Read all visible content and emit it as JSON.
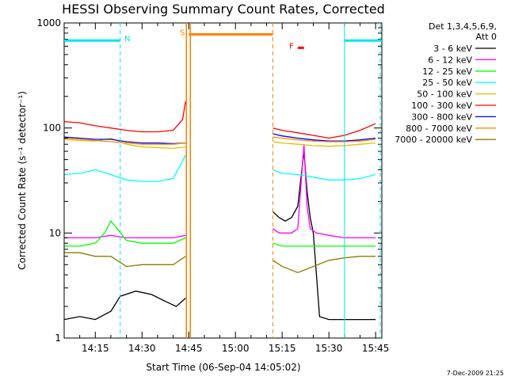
{
  "chart_data": {
    "type": "line",
    "title": "HESSI Observing Summary Count Rates, Corrected",
    "xlabel": "Start Time (06-Sep-04 14:05:02)",
    "ylabel": "Corrected Count Rate (s⁻¹ detector⁻¹)",
    "y_scale": "log",
    "ylim": [
      1,
      1000
    ],
    "xlim": [
      "14:05",
      "15:47"
    ],
    "x_ticks": [
      "14:15",
      "14:30",
      "14:45",
      "15:00",
      "15:15",
      "15:30",
      "15:45"
    ],
    "y_ticks": [
      "1",
      "10",
      "100",
      "1000"
    ],
    "legend_header": [
      "Det 1,3,4,5,6,9,",
      "Att 0"
    ],
    "legend_position": "right",
    "grid": false,
    "footer": "7-Dec-2009 21:25",
    "markers": [
      {
        "label": "N",
        "color": "#00e5ee",
        "x_start": "14:05",
        "x_end": "14:23",
        "y": 680
      },
      {
        "label": "S",
        "color": "#ff7f00",
        "x_start": "14:45",
        "x_end": "15:12",
        "y": 780
      },
      {
        "label": "F",
        "color": "#ff0000",
        "x_start": "15:20",
        "x_end": "15:22",
        "y": 580
      },
      {
        "label": "",
        "color": "#00e5ee",
        "x_start": "15:35",
        "x_end": "15:47",
        "y": 680
      }
    ],
    "series": [
      {
        "name": "3 - 6 keV",
        "color": "#000000",
        "segments": [
          {
            "x": [
              "14:05",
              "14:10",
              "14:15",
              "14:20",
              "14:23",
              "14:28",
              "14:33",
              "14:38",
              "14:41",
              "14:44"
            ],
            "values": [
              1.5,
              1.6,
              1.5,
              1.8,
              2.5,
              2.8,
              2.6,
              2.2,
              2.0,
              2.4
            ]
          },
          {
            "x": [
              "15:12",
              "15:14",
              "15:16",
              "15:18",
              "15:20",
              "15:22",
              "15:23",
              "15:24",
              "15:25",
              "15:27",
              "15:30",
              "15:35",
              "15:40",
              "15:45"
            ],
            "values": [
              16,
              14,
              13,
              14,
              18,
              60,
              25,
              14,
              10,
              1.6,
              1.5,
              1.5,
              1.5,
              1.5
            ]
          }
        ]
      },
      {
        "name": "6 - 12 keV",
        "color": "#ff00ff",
        "segments": [
          {
            "x": [
              "14:05",
              "14:10",
              "14:15",
              "14:20",
              "14:25",
              "14:30",
              "14:35",
              "14:40",
              "14:44"
            ],
            "values": [
              9,
              9,
              9,
              9.5,
              9,
              9,
              9,
              9,
              9.5
            ]
          },
          {
            "x": [
              "15:12",
              "15:14",
              "15:16",
              "15:18",
              "15:20",
              "15:22",
              "15:23",
              "15:24",
              "15:26",
              "15:30",
              "15:35",
              "15:40",
              "15:45"
            ],
            "values": [
              11,
              10,
              10,
              10,
              11,
              70,
              18,
              11,
              10,
              9.5,
              9,
              9,
              9
            ]
          }
        ]
      },
      {
        "name": "12 - 25 keV",
        "color": "#00ff00",
        "segments": [
          {
            "x": [
              "14:05",
              "14:10",
              "14:15",
              "14:18",
              "14:20",
              "14:25",
              "14:30",
              "14:35",
              "14:40",
              "14:44"
            ],
            "values": [
              7.5,
              7.5,
              8,
              10,
              13,
              8.5,
              8,
              8,
              8,
              9
            ]
          },
          {
            "x": [
              "15:12",
              "15:15",
              "15:20",
              "15:25",
              "15:30",
              "15:35",
              "15:40",
              "15:45"
            ],
            "values": [
              8,
              7.5,
              7.5,
              7.5,
              7.5,
              7.5,
              7.5,
              7.5
            ]
          }
        ]
      },
      {
        "name": "25 - 50 keV",
        "color": "#00ffff",
        "segments": [
          {
            "x": [
              "14:05",
              "14:10",
              "14:15",
              "14:20",
              "14:25",
              "14:30",
              "14:35",
              "14:40",
              "14:44"
            ],
            "values": [
              36,
              37,
              40,
              36,
              32,
              31,
              31,
              33,
              55
            ]
          },
          {
            "x": [
              "15:12",
              "15:15",
              "15:20",
              "15:25",
              "15:30",
              "15:35",
              "15:40",
              "15:45"
            ],
            "values": [
              40,
              37,
              36,
              34,
              32,
              32,
              33,
              36
            ]
          }
        ]
      },
      {
        "name": "50 - 100 keV",
        "color": "#e0c000",
        "segments": [
          {
            "x": [
              "14:05",
              "14:10",
              "14:15",
              "14:20",
              "14:25",
              "14:30",
              "14:35",
              "14:40",
              "14:44"
            ],
            "values": [
              78,
              76,
              75,
              80,
              70,
              66,
              65,
              64,
              66
            ]
          },
          {
            "x": [
              "15:12",
              "15:15",
              "15:20",
              "15:25",
              "15:30",
              "15:35",
              "15:40",
              "15:45"
            ],
            "values": [
              74,
              72,
              70,
              68,
              67,
              68,
              70,
              72
            ]
          }
        ]
      },
      {
        "name": "100 - 300 keV",
        "color": "#ff0000",
        "segments": [
          {
            "x": [
              "14:05",
              "14:10",
              "14:15",
              "14:20",
              "14:25",
              "14:30",
              "14:35",
              "14:40",
              "14:43",
              "14:44"
            ],
            "values": [
              115,
              112,
              105,
              100,
              95,
              92,
              92,
              95,
              120,
              180
            ]
          },
          {
            "x": [
              "15:12",
              "15:15",
              "15:20",
              "15:25",
              "15:30",
              "15:35",
              "15:40",
              "15:45"
            ],
            "values": [
              100,
              95,
              90,
              85,
              80,
              85,
              95,
              110
            ]
          }
        ]
      },
      {
        "name": "300 - 800 keV",
        "color": "#0000ff",
        "segments": [
          {
            "x": [
              "14:05",
              "14:10",
              "14:15",
              "14:20",
              "14:25",
              "14:30",
              "14:35",
              "14:40",
              "14:44"
            ],
            "values": [
              82,
              80,
              78,
              78,
              74,
              72,
              72,
              71,
              72
            ]
          },
          {
            "x": [
              "15:12",
              "15:15",
              "15:20",
              "15:25",
              "15:30",
              "15:35",
              "15:40",
              "15:45"
            ],
            "values": [
              88,
              84,
              80,
              77,
              75,
              75,
              77,
              80
            ]
          }
        ]
      },
      {
        "name": "800 - 7000 keV",
        "color": "#ff8c00",
        "segments": [
          {
            "x": [
              "14:05",
              "14:10",
              "14:15",
              "14:20",
              "14:25",
              "14:30",
              "14:35",
              "14:40",
              "14:44"
            ],
            "values": [
              80,
              78,
              76,
              74,
              72,
              70,
              70,
              70,
              72
            ]
          },
          {
            "x": [
              "15:12",
              "15:15",
              "15:20",
              "15:25",
              "15:30",
              "15:35",
              "15:40",
              "15:45"
            ],
            "values": [
              82,
              80,
              77,
              75,
              74,
              74,
              75,
              78
            ]
          }
        ]
      },
      {
        "name": "7000 - 20000 keV",
        "color": "#8b7d00",
        "segments": [
          {
            "x": [
              "14:05",
              "14:10",
              "14:15",
              "14:20",
              "14:25",
              "14:30",
              "14:35",
              "14:40",
              "14:44"
            ],
            "values": [
              6.5,
              6.5,
              6,
              6,
              4.8,
              5,
              5,
              5,
              6
            ]
          },
          {
            "x": [
              "15:12",
              "15:15",
              "15:20",
              "15:25",
              "15:30",
              "15:35",
              "15:40",
              "15:45"
            ],
            "values": [
              5.5,
              4.8,
              4.2,
              4.8,
              5.5,
              5.8,
              6,
              6
            ]
          }
        ]
      }
    ]
  }
}
